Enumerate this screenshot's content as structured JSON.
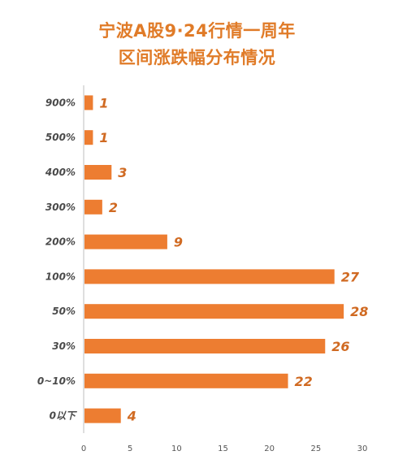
{
  "title_line1": "宁波A股9·24行情一周年",
  "title_line2": "区间涨跌幅分布情况",
  "colors": {
    "bar": "#ed7d31",
    "title": "#e07b28",
    "value_label": "#d06a22",
    "axis": "#bfbfbf"
  },
  "chart_data": {
    "type": "bar",
    "orientation": "horizontal",
    "title": "宁波A股9·24行情一周年 区间涨跌幅分布情况",
    "categories": [
      "900%",
      "500%",
      "400%",
      "300%",
      "200%",
      "100%",
      "50%",
      "30%",
      "0~10%",
      "0以下"
    ],
    "values": [
      1,
      1,
      3,
      2,
      9,
      27,
      28,
      26,
      22,
      4
    ],
    "xlim": [
      0,
      30
    ],
    "xticks": [
      0,
      5,
      10,
      15,
      20,
      25,
      30
    ],
    "grid": false,
    "data_labels": true
  }
}
